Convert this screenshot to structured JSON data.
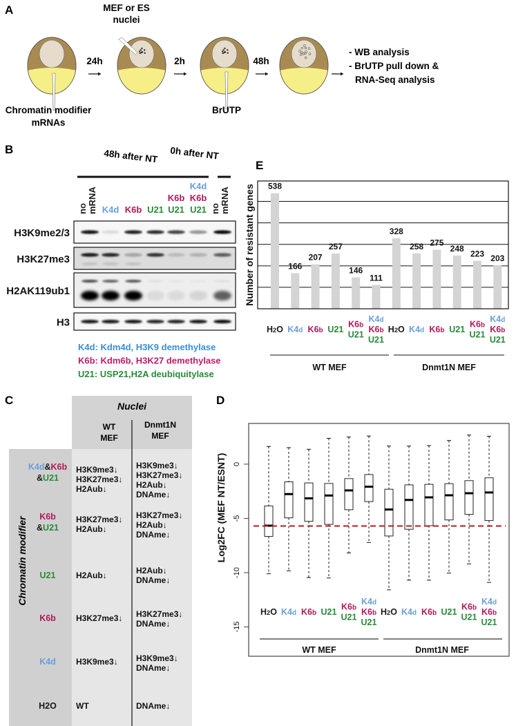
{
  "colors": {
    "k4d": "#6a9fd8",
    "k6b": "#b0185a",
    "u21": "#2a8a3a",
    "black": "#1a1a1a",
    "legend_blue": "#3a8fd6",
    "legend_magenta": "#c01b68",
    "embryo_brown": "#a98b52",
    "embryo_yellow": "#f6ef88",
    "nucleus": "#e5dccb",
    "bar": "#d4d4d4",
    "dashed_line": "#c0141e"
  },
  "panel_a": {
    "label": "A",
    "nuclei_label": [
      "MEF or ES",
      "nuclei"
    ],
    "times": [
      "24h",
      "2h",
      "48h"
    ],
    "modifier_label": [
      "Chromatin modifier",
      "mRNAs"
    ],
    "brutp_label": "BrUTP",
    "analysis": [
      "- WB analysis",
      "- BrUTP pull down &",
      "RNA-Seq analysis"
    ]
  },
  "panel_b": {
    "label": "B",
    "header_48h": "48h after NT",
    "header_0h": "0h after NT",
    "lanes": [
      {
        "lines": [
          [
            "no",
            "black"
          ],
          [
            "mRNA",
            "black"
          ]
        ],
        "rotated": true
      },
      {
        "lines": [
          [
            "K4d",
            "k4d"
          ]
        ]
      },
      {
        "lines": [
          [
            "K6b",
            "k6b"
          ]
        ]
      },
      {
        "lines": [
          [
            "U21",
            "u21"
          ]
        ]
      },
      {
        "lines": [
          [
            "K6b",
            "k6b"
          ],
          [
            "U21",
            "u21"
          ]
        ]
      },
      {
        "lines": [
          [
            "K4d",
            "k4d"
          ],
          [
            "K6b",
            "k6b"
          ],
          [
            "U21",
            "u21"
          ]
        ]
      },
      {
        "lines": [
          [
            "no",
            "black"
          ],
          [
            "mRNA",
            "black"
          ]
        ],
        "rotated": true
      }
    ],
    "blots": [
      {
        "name": "H3K9me2/3",
        "band_intensity": [
          0.95,
          0.1,
          0.9,
          0.85,
          0.75,
          0.4,
          1.0
        ]
      },
      {
        "name": "H3K27me3",
        "band_intensity": [
          0.9,
          0.85,
          0.25,
          0.8,
          0.15,
          0.2,
          0.6
        ]
      },
      {
        "name": "H2AK119ub1",
        "band_intensity": [
          1.0,
          1.0,
          1.0,
          0.08,
          0.08,
          0.1,
          0.6
        ],
        "upper_band_intensity": [
          0.7,
          0.6,
          0.65,
          0.05,
          0.03,
          0.03,
          0.05
        ]
      },
      {
        "name": "H3",
        "band_intensity": [
          0.9,
          0.9,
          0.9,
          0.85,
          0.85,
          0.9,
          0.95
        ]
      }
    ],
    "legend": [
      {
        "text": "K4d: Kdm4d, H3K9 demethylase",
        "color": "legend_blue"
      },
      {
        "text": "K6b: Kdm6b, H3K27 demethylase",
        "color": "legend_magenta"
      },
      {
        "text": "U21: USP21,H2A deubiquitylase",
        "color": "u21"
      }
    ]
  },
  "panel_c": {
    "label": "C",
    "header": "Nuclei",
    "col_wt": [
      "WT",
      "MEF"
    ],
    "col_dnmt": [
      "Dnmt1N",
      "MEF"
    ],
    "row_axis_label": "Chromatin modifier",
    "rows": [
      {
        "label": [
          [
            [
              "K4d",
              "k4d"
            ],
            [
              "&",
              "black"
            ],
            [
              "K6b",
              "k6b"
            ]
          ],
          [
            [
              "&",
              "black"
            ],
            [
              "U21",
              "u21"
            ]
          ]
        ],
        "wt": [
          "H3K9me3↓",
          "H3K27me3↓",
          "H2Aub↓"
        ],
        "dnmt": [
          "H3K9me3↓",
          "H3K27me3↓",
          "H2Aub↓",
          "DNAme↓"
        ]
      },
      {
        "label": [
          [
            [
              "K6b",
              "k6b"
            ]
          ],
          [
            [
              "&",
              "black"
            ],
            [
              "U21",
              "u21"
            ]
          ]
        ],
        "wt": [
          "H3K27me3↓",
          "H2Aub↓"
        ],
        "dnmt": [
          "H3K27me3↓",
          "H2Aub↓",
          "DNAme↓"
        ]
      },
      {
        "label": [
          [
            [
              "U21",
              "u21"
            ]
          ]
        ],
        "wt": [
          "H2Aub↓"
        ],
        "dnmt": [
          "H2Aub↓",
          "DNAme↓"
        ]
      },
      {
        "label": [
          [
            [
              "K6b",
              "k6b"
            ]
          ]
        ],
        "wt": [
          "H3K27me3↓"
        ],
        "dnmt": [
          "H3K27me3↓",
          "DNAme↓"
        ]
      },
      {
        "label": [
          [
            [
              "K4d",
              "k4d"
            ]
          ]
        ],
        "wt": [
          "H3K9me3↓"
        ],
        "dnmt": [
          "H3K9me3↓",
          "DNAme↓"
        ]
      },
      {
        "label": [
          [
            [
              "H2O",
              "black"
            ]
          ]
        ],
        "wt": [
          "WT"
        ],
        "dnmt": [
          "DNAme↓"
        ]
      }
    ]
  },
  "chart_data": [
    {
      "panel": "E",
      "type": "bar",
      "ylabel": "Number of resistant genes",
      "ylim": [
        0,
        595
      ],
      "grid": true,
      "gridlines": [
        100,
        200,
        300,
        400,
        500
      ],
      "categories": [
        [
          [
            "H2O",
            "black"
          ]
        ],
        [
          [
            "K4d",
            "k4d"
          ]
        ],
        [
          [
            "K6b",
            "k6b"
          ]
        ],
        [
          [
            "U21",
            "u21"
          ]
        ],
        [
          [
            "K6b",
            "k6b"
          ],
          [
            "U21",
            "u21"
          ]
        ],
        [
          [
            "K4d",
            "k4d"
          ],
          [
            "K6b",
            "k6b"
          ],
          [
            "U21",
            "u21"
          ]
        ],
        [
          [
            "H2O",
            "black"
          ]
        ],
        [
          [
            "K4d",
            "k4d"
          ]
        ],
        [
          [
            "K6b",
            "k6b"
          ]
        ],
        [
          [
            "U21",
            "u21"
          ]
        ],
        [
          [
            "K6b",
            "k6b"
          ],
          [
            "U21",
            "u21"
          ]
        ],
        [
          [
            "K4d",
            "k4d"
          ],
          [
            "K6b",
            "k6b"
          ],
          [
            "U21",
            "u21"
          ]
        ]
      ],
      "values": [
        538,
        166,
        207,
        257,
        146,
        111,
        328,
        258,
        275,
        248,
        223,
        203
      ],
      "data_labels": [
        "538",
        "166",
        "207",
        "257",
        "146",
        "111",
        "328",
        "258",
        "275",
        "248",
        "223",
        "203"
      ],
      "groups": [
        "WT MEF",
        "Dnmt1N MEF"
      ]
    },
    {
      "panel": "D",
      "type": "box",
      "ylabel": "Log2FC (MEF NT/ESNT)",
      "ylim": [
        -17.7,
        3.75
      ],
      "yticks": [
        0,
        -5,
        -10,
        -15
      ],
      "ytick_labels": [
        "0",
        "-5",
        "-10",
        "-15"
      ],
      "reference_line": -5.7,
      "categories": [
        [
          [
            "H2O",
            "black"
          ]
        ],
        [
          [
            "K4d",
            "k4d"
          ]
        ],
        [
          [
            "K6b",
            "k6b"
          ]
        ],
        [
          [
            "U21",
            "u21"
          ]
        ],
        [
          [
            "K6b",
            "k6b"
          ],
          [
            "U21",
            "u21"
          ]
        ],
        [
          [
            "K4d",
            "k4d"
          ],
          [
            "K6b",
            "k6b"
          ],
          [
            "U21",
            "u21"
          ]
        ],
        [
          [
            "H2O",
            "black"
          ]
        ],
        [
          [
            "K4d",
            "k4d"
          ]
        ],
        [
          [
            "K6b",
            "k6b"
          ]
        ],
        [
          [
            "U21",
            "u21"
          ]
        ],
        [
          [
            "K6b",
            "k6b"
          ],
          [
            "U21",
            "u21"
          ]
        ],
        [
          [
            "K4d",
            "k4d"
          ],
          [
            "K6b",
            "k6b"
          ],
          [
            "U21",
            "u21"
          ]
        ]
      ],
      "boxes": [
        {
          "whisker_high": 1.63,
          "q3": -3.85,
          "median": -5.67,
          "q1": -6.66,
          "whisker_low": -10.1
        },
        {
          "whisker_high": 1.52,
          "q3": -1.63,
          "median": -2.76,
          "q1": -4.95,
          "whisker_low": -9.83
        },
        {
          "whisker_high": 1.37,
          "q3": -1.73,
          "median": -3.15,
          "q1": -5.27,
          "whisker_low": -10.45
        },
        {
          "whisker_high": 2.38,
          "q3": -1.78,
          "median": -2.89,
          "q1": -5.55,
          "whisker_low": -10.49
        },
        {
          "whisker_high": 2.5,
          "q3": -1.33,
          "median": -2.42,
          "q1": -4.2,
          "whisker_low": -8.18
        },
        {
          "whisker_high": 2.59,
          "q3": -0.96,
          "median": -2.08,
          "q1": -3.45,
          "whisker_low": -7.22
        },
        {
          "whisker_high": 1.67,
          "q3": -2.31,
          "median": -4.18,
          "q1": -6.62,
          "whisker_low": -11.58
        },
        {
          "whisker_high": 1.67,
          "q3": -1.91,
          "median": -3.3,
          "q1": -6.0,
          "whisker_low": -10.69
        },
        {
          "whisker_high": 1.71,
          "q3": -1.86,
          "median": -3.06,
          "q1": -5.67,
          "whisker_low": -10.69
        },
        {
          "whisker_high": 2.18,
          "q3": -1.8,
          "median": -2.87,
          "q1": -5.14,
          "whisker_low": -10.04
        },
        {
          "whisker_high": 2.68,
          "q3": -1.52,
          "median": -2.68,
          "q1": -4.63,
          "whisker_low": -9.19
        },
        {
          "whisker_high": 2.57,
          "q3": -1.26,
          "median": -2.61,
          "q1": -5.2,
          "whisker_low": -10.9
        }
      ],
      "groups": [
        "WT MEF",
        "Dnmt1N MEF"
      ]
    }
  ],
  "panel_labels": {
    "d": "D",
    "e": "E"
  }
}
